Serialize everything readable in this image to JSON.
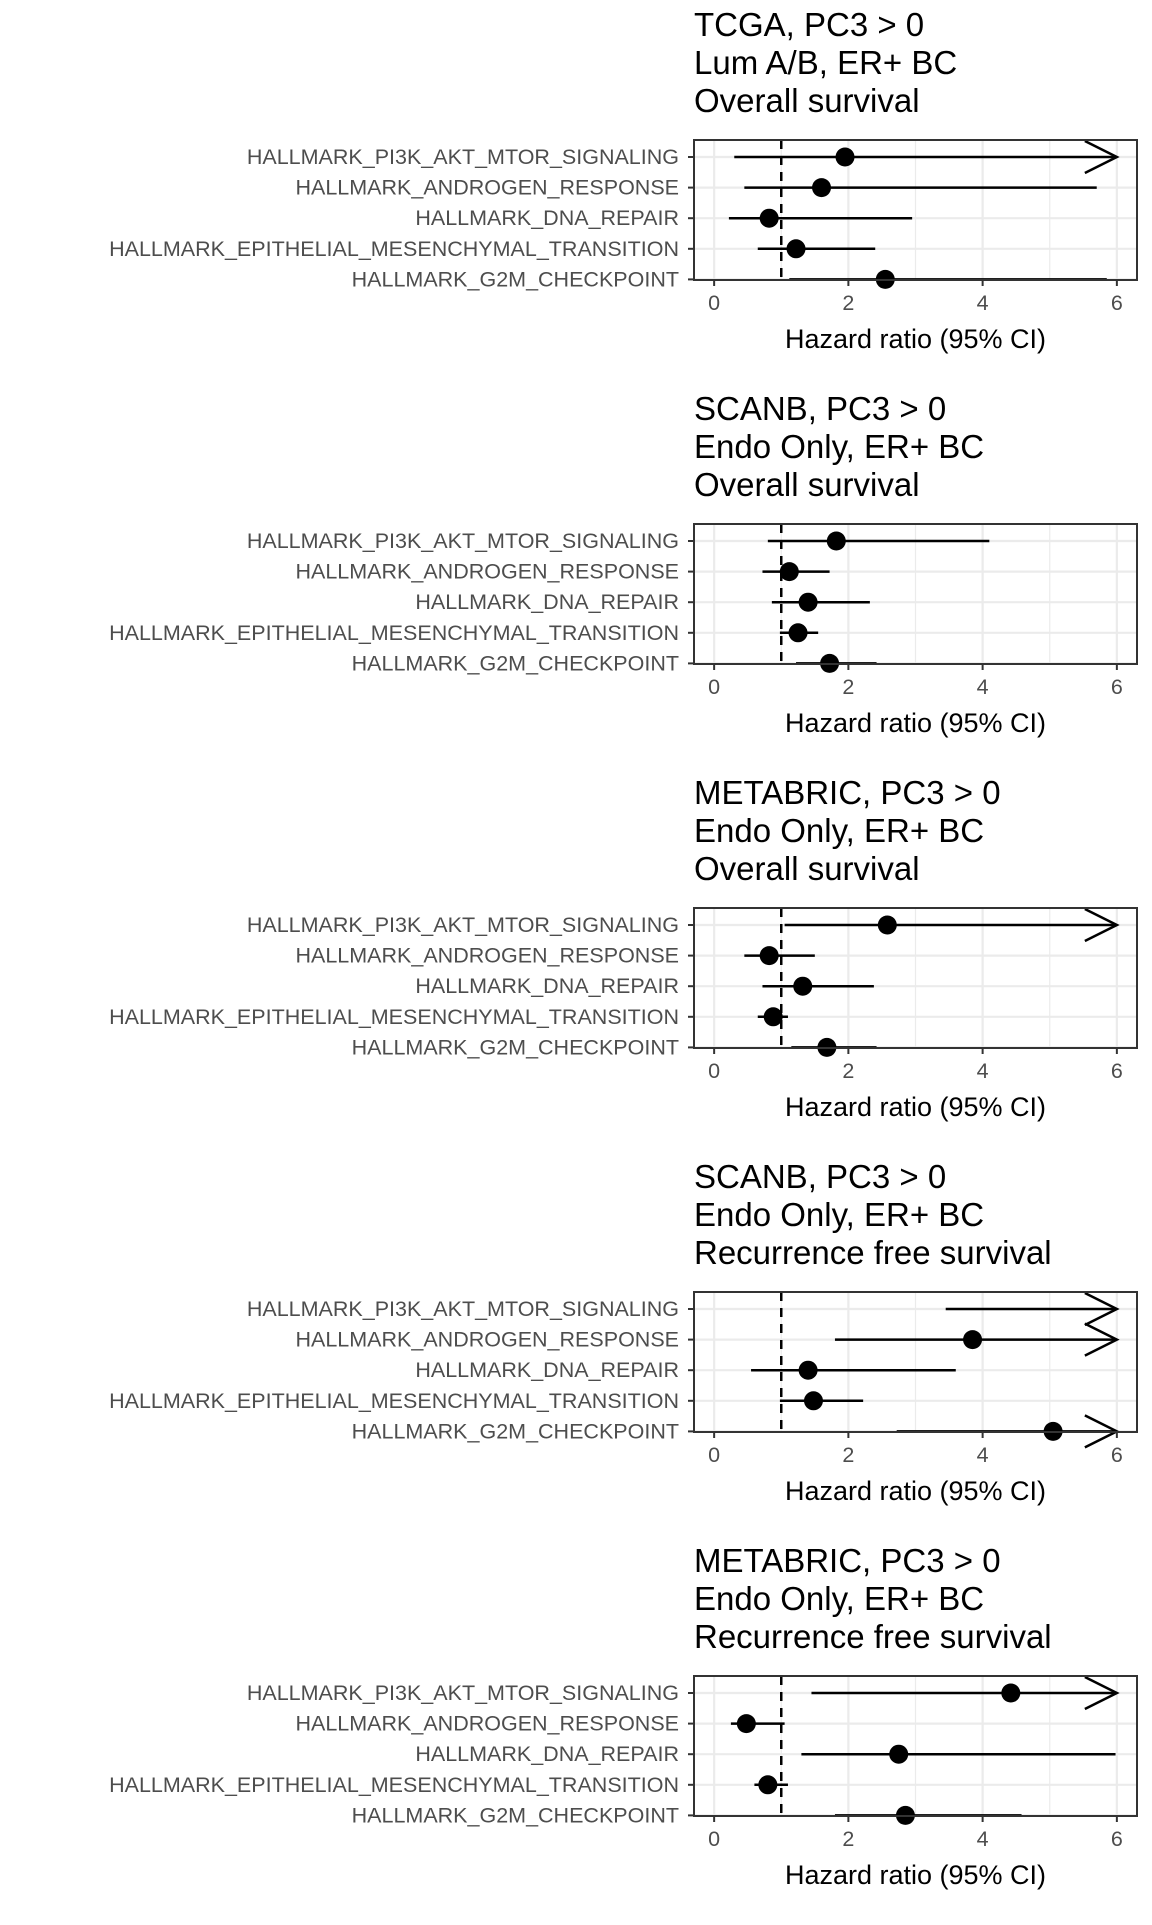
{
  "chart_data": [
    {
      "type": "forest",
      "title_lines": [
        "TCGA, PC3 > 0",
        "Lum A/B, ER+ BC",
        "Overall survival"
      ],
      "categories": [
        "HALLMARK_PI3K_AKT_MTOR_SIGNALING",
        "HALLMARK_ANDROGEN_RESPONSE",
        "HALLMARK_DNA_REPAIR",
        "HALLMARK_EPITHELIAL_MESENCHYMAL_TRANSITION",
        "HALLMARK_G2M_CHECKPOINT"
      ],
      "hr": [
        1.95,
        1.6,
        0.82,
        1.22,
        2.55
      ],
      "lower": [
        0.3,
        0.45,
        0.22,
        0.65,
        1.12
      ],
      "upper": [
        6.0,
        5.7,
        2.95,
        2.4,
        5.85
      ],
      "truncated_upper": [
        true,
        false,
        false,
        false,
        false
      ],
      "xlabel": "Hazard ratio (95% CI)",
      "xticks": [
        0,
        2,
        4,
        6
      ],
      "xlim": [
        -0.3,
        6.3
      ],
      "reference_line": 1
    },
    {
      "type": "forest",
      "title_lines": [
        "SCANB, PC3 > 0",
        "Endo Only, ER+ BC",
        "Overall survival"
      ],
      "categories": [
        "HALLMARK_PI3K_AKT_MTOR_SIGNALING",
        "HALLMARK_ANDROGEN_RESPONSE",
        "HALLMARK_DNA_REPAIR",
        "HALLMARK_EPITHELIAL_MESENCHYMAL_TRANSITION",
        "HALLMARK_G2M_CHECKPOINT"
      ],
      "hr": [
        1.82,
        1.12,
        1.4,
        1.25,
        1.72
      ],
      "lower": [
        0.8,
        0.72,
        0.86,
        0.98,
        1.22
      ],
      "upper": [
        4.1,
        1.72,
        2.32,
        1.55,
        2.42
      ],
      "truncated_upper": [
        false,
        false,
        false,
        false,
        false
      ],
      "xlabel": "Hazard ratio (95% CI)",
      "xticks": [
        0,
        2,
        4,
        6
      ],
      "xlim": [
        -0.3,
        6.3
      ],
      "reference_line": 1
    },
    {
      "type": "forest",
      "title_lines": [
        "METABRIC, PC3 > 0",
        "Endo Only, ER+ BC",
        "Overall survival"
      ],
      "categories": [
        "HALLMARK_PI3K_AKT_MTOR_SIGNALING",
        "HALLMARK_ANDROGEN_RESPONSE",
        "HALLMARK_DNA_REPAIR",
        "HALLMARK_EPITHELIAL_MESENCHYMAL_TRANSITION",
        "HALLMARK_G2M_CHECKPOINT"
      ],
      "hr": [
        2.58,
        0.82,
        1.32,
        0.88,
        1.68
      ],
      "lower": [
        1.05,
        0.45,
        0.72,
        0.65,
        1.15
      ],
      "upper": [
        6.0,
        1.5,
        2.38,
        1.1,
        2.42
      ],
      "truncated_upper": [
        true,
        false,
        false,
        false,
        false
      ],
      "xlabel": "Hazard ratio (95% CI)",
      "xticks": [
        0,
        2,
        4,
        6
      ],
      "xlim": [
        -0.3,
        6.3
      ],
      "reference_line": 1
    },
    {
      "type": "forest",
      "title_lines": [
        "SCANB, PC3 > 0",
        "Endo Only, ER+ BC",
        "Recurrence free survival"
      ],
      "categories": [
        "HALLMARK_PI3K_AKT_MTOR_SIGNALING",
        "HALLMARK_ANDROGEN_RESPONSE",
        "HALLMARK_DNA_REPAIR",
        "HALLMARK_EPITHELIAL_MESENCHYMAL_TRANSITION",
        "HALLMARK_G2M_CHECKPOINT"
      ],
      "hr": [
        null,
        3.85,
        1.4,
        1.48,
        5.05
      ],
      "lower": [
        3.45,
        1.8,
        0.55,
        0.98,
        2.72
      ],
      "upper": [
        6.0,
        6.0,
        3.6,
        2.22,
        6.0
      ],
      "truncated_upper": [
        true,
        true,
        false,
        false,
        true
      ],
      "xlabel": "Hazard ratio (95% CI)",
      "xticks": [
        0,
        2,
        4,
        6
      ],
      "xlim": [
        -0.3,
        6.3
      ],
      "reference_line": 1
    },
    {
      "type": "forest",
      "title_lines": [
        "METABRIC, PC3 > 0",
        "Endo Only, ER+ BC",
        "Recurrence free survival"
      ],
      "categories": [
        "HALLMARK_PI3K_AKT_MTOR_SIGNALING",
        "HALLMARK_ANDROGEN_RESPONSE",
        "HALLMARK_DNA_REPAIR",
        "HALLMARK_EPITHELIAL_MESENCHYMAL_TRANSITION",
        "HALLMARK_G2M_CHECKPOINT"
      ],
      "hr": [
        4.42,
        0.48,
        2.75,
        0.8,
        2.85
      ],
      "lower": [
        1.45,
        0.25,
        1.3,
        0.6,
        1.8
      ],
      "upper": [
        6.0,
        1.05,
        5.98,
        1.1,
        4.58
      ],
      "truncated_upper": [
        true,
        false,
        false,
        false,
        false
      ],
      "xlabel": "Hazard ratio (95% CI)",
      "xticks": [
        0,
        2,
        4,
        6
      ],
      "xlim": [
        -0.3,
        6.3
      ],
      "reference_line": 1
    }
  ],
  "colors": {
    "panel_border": "#333333",
    "grid": "#ebebeb",
    "mark": "#000000",
    "axis_text": "#4d4d4d",
    "title_text": "#000000"
  }
}
